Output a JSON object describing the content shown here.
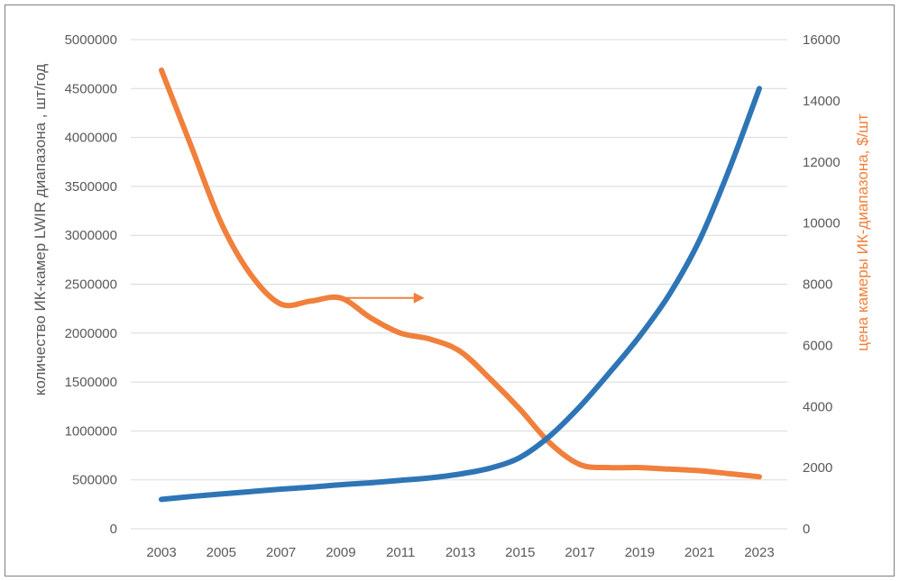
{
  "chart_data": {
    "type": "line",
    "x_ticks": [
      "2003",
      "2005",
      "2007",
      "2009",
      "2011",
      "2013",
      "2015",
      "2017",
      "2019",
      "2021",
      "2023"
    ],
    "y_left": {
      "label": "количество ИК-камер LWIR диапазона , шт/год",
      "range": [
        0,
        5000000
      ],
      "ticks": [
        "0",
        "500000",
        "1000000",
        "1500000",
        "2000000",
        "2500000",
        "3000000",
        "3500000",
        "4000000",
        "4500000",
        "5000000"
      ]
    },
    "y_right": {
      "label": "цена камеры ИК-диапазона, $/шт",
      "range": [
        0,
        16000
      ],
      "ticks": [
        "0",
        "2000",
        "4000",
        "6000",
        "8000",
        "10000",
        "12000",
        "14000",
        "16000"
      ]
    },
    "grid": true,
    "series": [
      {
        "axis": "left",
        "color": "#2E75B6",
        "x": [
          2003,
          2004,
          2005,
          2006,
          2007,
          2008,
          2009,
          2010,
          2011,
          2012,
          2013,
          2014,
          2015,
          2016,
          2017,
          2018,
          2019,
          2020,
          2021,
          2022,
          2023
        ],
        "y": [
          300000,
          330000,
          355000,
          380000,
          405000,
          425000,
          450000,
          470000,
          495000,
          520000,
          560000,
          620000,
          730000,
          950000,
          1250000,
          1600000,
          1970000,
          2400000,
          2950000,
          3680000,
          4500000
        ]
      },
      {
        "axis": "right",
        "color": "#F0803C",
        "x": [
          2003,
          2004,
          2005,
          2006,
          2007,
          2008,
          2009,
          2010,
          2011,
          2012,
          2013,
          2014,
          2015,
          2016,
          2017,
          2018,
          2019,
          2020,
          2021,
          2022,
          2023
        ],
        "y": [
          15000,
          12500,
          10000,
          8300,
          7350,
          7450,
          7550,
          6900,
          6400,
          6200,
          5800,
          4900,
          3900,
          2800,
          2100,
          2000,
          2000,
          1950,
          1900,
          1800,
          1700
        ]
      }
    ],
    "annotations": [
      {
        "type": "arrow",
        "color": "#F0803C",
        "axis": "right",
        "from": [
          2009,
          7550
        ],
        "to": [
          2011.8,
          7550
        ]
      }
    ]
  }
}
